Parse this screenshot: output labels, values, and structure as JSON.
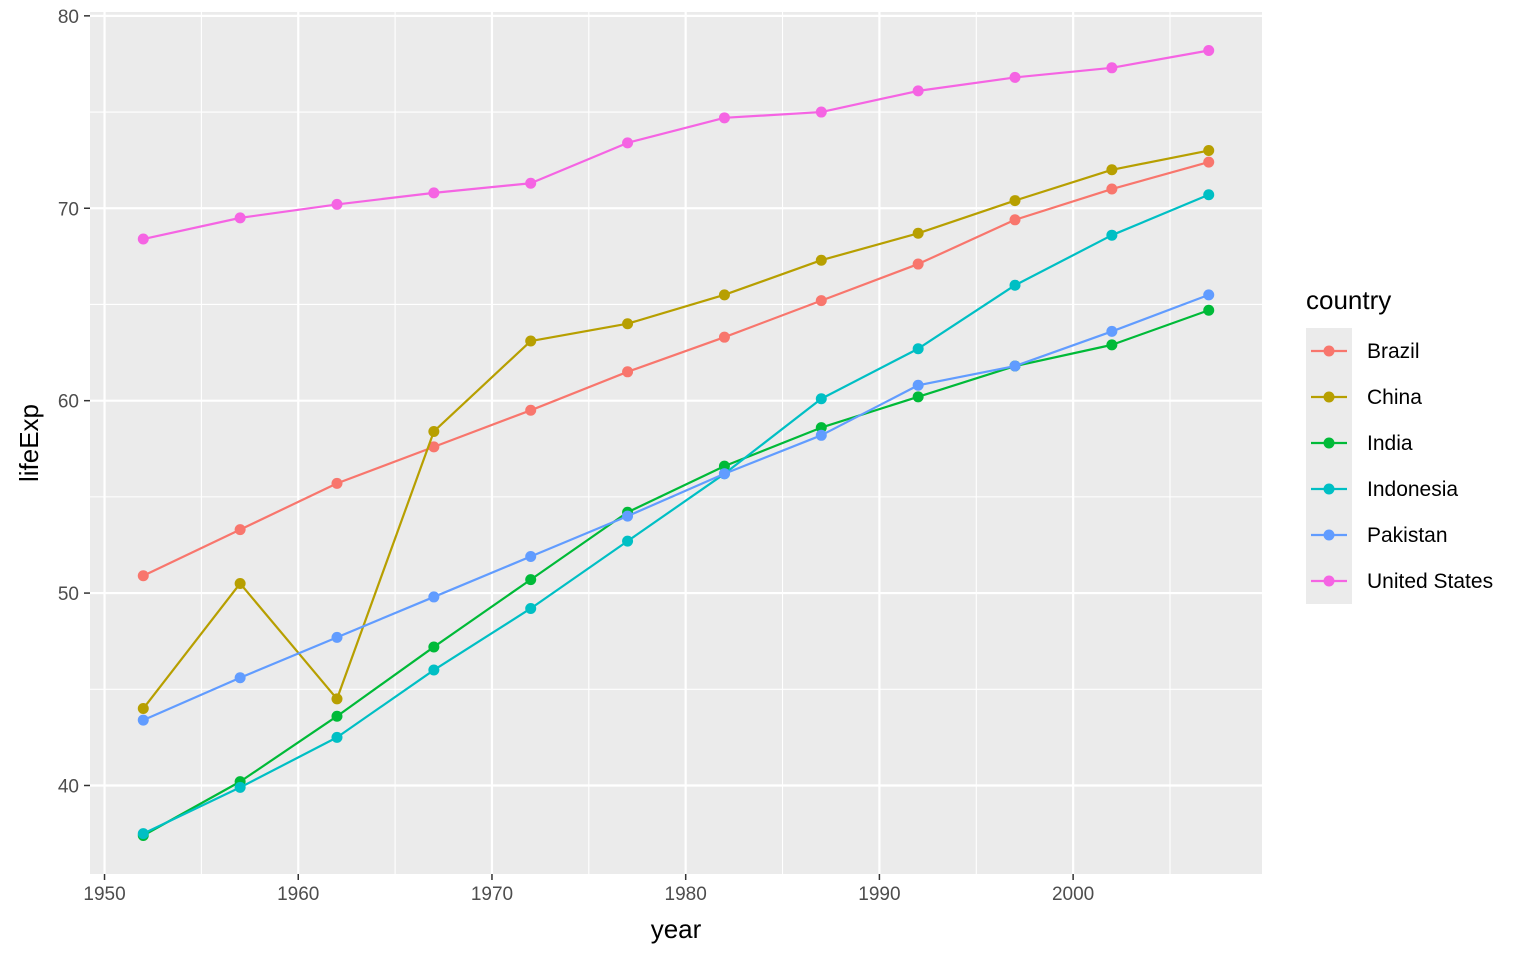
{
  "chart_data": {
    "type": "line",
    "xlabel": "year",
    "ylabel": "lifeExp",
    "xlim": [
      1949.25,
      2009.75
    ],
    "ylim": [
      35.4,
      80.2
    ],
    "x_ticks": [
      1950,
      1960,
      1970,
      1980,
      1990,
      2000
    ],
    "y_ticks": [
      40,
      50,
      60,
      70,
      80
    ],
    "grid": true,
    "legend_title": "country",
    "legend_position": "right",
    "x": [
      1952,
      1957,
      1962,
      1967,
      1972,
      1977,
      1982,
      1987,
      1992,
      1997,
      2002,
      2007
    ],
    "series": [
      {
        "name": "Brazil",
        "color": "#F8766D",
        "values": [
          50.9,
          53.3,
          55.7,
          57.6,
          59.5,
          61.5,
          63.3,
          65.2,
          67.1,
          69.4,
          71.0,
          72.4
        ]
      },
      {
        "name": "China",
        "color": "#B79F00",
        "values": [
          44.0,
          50.5,
          44.5,
          58.4,
          63.1,
          64.0,
          65.5,
          67.3,
          68.7,
          70.4,
          72.0,
          73.0
        ]
      },
      {
        "name": "India",
        "color": "#00BA38",
        "values": [
          37.4,
          40.2,
          43.6,
          47.2,
          50.7,
          54.2,
          56.6,
          58.6,
          60.2,
          61.8,
          62.9,
          64.7
        ]
      },
      {
        "name": "Indonesia",
        "color": "#00BFC4",
        "values": [
          37.5,
          39.9,
          42.5,
          46.0,
          49.2,
          52.7,
          56.2,
          60.1,
          62.7,
          66.0,
          68.6,
          70.7
        ]
      },
      {
        "name": "Pakistan",
        "color": "#619CFF",
        "values": [
          43.4,
          45.6,
          47.7,
          49.8,
          51.9,
          54.0,
          56.2,
          58.2,
          60.8,
          61.8,
          63.6,
          65.5
        ]
      },
      {
        "name": "United States",
        "color": "#F564E3",
        "values": [
          68.4,
          69.5,
          70.2,
          70.8,
          71.3,
          73.4,
          74.7,
          75.0,
          76.1,
          76.8,
          77.3,
          78.2
        ]
      }
    ]
  }
}
